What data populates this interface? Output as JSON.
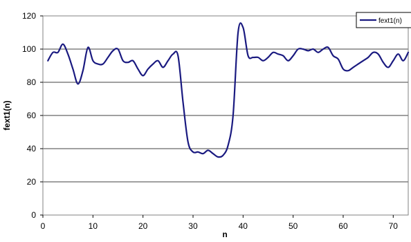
{
  "chart_data": {
    "type": "line",
    "title": "",
    "xlabel": "n",
    "ylabel": "fext1(n)",
    "xlim": [
      0,
      73
    ],
    "ylim": [
      0,
      120
    ],
    "x_ticks": [
      "0",
      "10",
      "20",
      "30",
      "40",
      "50",
      "60",
      "70"
    ],
    "y_ticks": [
      "0",
      "20",
      "40",
      "60",
      "80",
      "100",
      "120"
    ],
    "grid": "horizontal",
    "legend": {
      "position": "top-right",
      "entries": [
        "fext1(n)"
      ]
    },
    "series": [
      {
        "name": "fext1(n)",
        "color": "#1a1a80",
        "x": [
          1,
          2,
          3,
          4,
          5,
          6,
          7,
          8,
          9,
          10,
          11,
          12,
          13,
          14,
          15,
          16,
          17,
          18,
          19,
          20,
          21,
          22,
          23,
          24,
          25,
          26,
          27,
          28,
          29,
          30,
          31,
          32,
          33,
          34,
          35,
          36,
          37,
          38,
          39,
          40,
          41,
          42,
          43,
          44,
          45,
          46,
          47,
          48,
          49,
          50,
          51,
          52,
          53,
          54,
          55,
          56,
          57,
          58,
          59,
          60,
          61,
          62,
          63,
          64,
          65,
          66,
          67,
          68,
          69,
          70,
          71,
          72,
          73
        ],
        "y": [
          93,
          98,
          98,
          103,
          97,
          88,
          79,
          87,
          101,
          93,
          91,
          91,
          95,
          99,
          100,
          93,
          92,
          93,
          88,
          84,
          88,
          91,
          93,
          89,
          93,
          97,
          96,
          68,
          44,
          38,
          38,
          37,
          39,
          37,
          35,
          36,
          42,
          60,
          110,
          113,
          96,
          95,
          95,
          93,
          95,
          98,
          97,
          96,
          93,
          96,
          100,
          100,
          99,
          100,
          98,
          100,
          101,
          96,
          94,
          88,
          87,
          89,
          91,
          93,
          95,
          98,
          97,
          92,
          89,
          93,
          97,
          93,
          98
        ]
      }
    ]
  }
}
